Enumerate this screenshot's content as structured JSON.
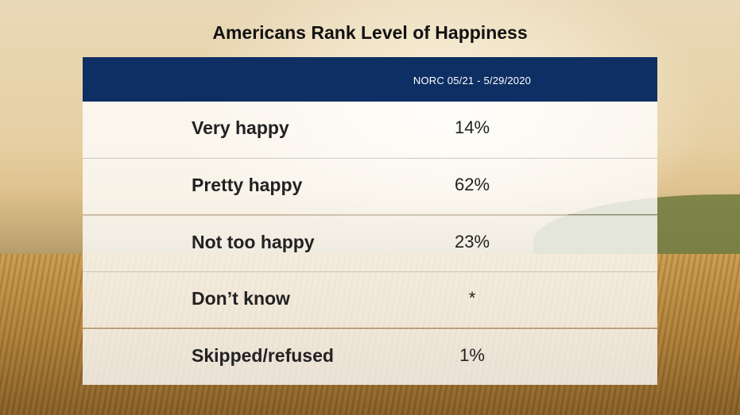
{
  "title": "Americans Rank Level of Happiness",
  "chart_data": {
    "type": "table",
    "title": "Americans Rank Level of Happiness",
    "column_header": "NORC  05/21 - 5/29/2020",
    "rows": [
      {
        "label": "Very happy",
        "value": "14%"
      },
      {
        "label": "Pretty happy",
        "value": "62%"
      },
      {
        "label": "Not too happy",
        "value": "23%"
      },
      {
        "label": "Don’t know",
        "value": "*"
      },
      {
        "label": "Skipped/refused",
        "value": "1%"
      }
    ],
    "colors": {
      "header_bg": "#0e2f63",
      "header_text": "#ffffff",
      "row_bg": "rgba(255,255,255,0.80)"
    }
  }
}
